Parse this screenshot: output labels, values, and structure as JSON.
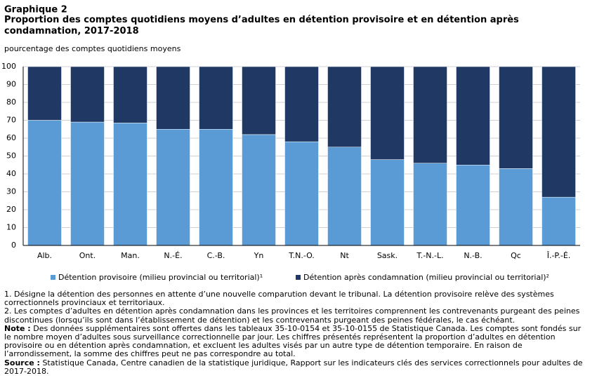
{
  "chart_data": {
    "type": "stacked-bar",
    "label": "Graphique 2",
    "title": "Proportion des comptes quotidiens moyens d’adultes en détention provisoire et en détention après condamnation, 2017-2018",
    "ylabel": "pourcentage des comptes quotidiens moyens",
    "categories": [
      "Alb.",
      "Ont.",
      "Man.",
      "N.-É.",
      "C.-B.",
      "Yn",
      "T.N.-O.",
      "Nt",
      "Sask.",
      "T.-N.-L.",
      "N.-B.",
      "Qc",
      "Î.-P.-É."
    ],
    "series": [
      {
        "name": "Détention provisoire (milieu provincial ou territorial)¹",
        "color": "#5b9bd5",
        "values": [
          70,
          69,
          68.5,
          65,
          65,
          62,
          58,
          55,
          48,
          46,
          45,
          43,
          27
        ]
      },
      {
        "name": "Détention après condamnation (milieu provincial ou territorial)²",
        "color": "#1f3864",
        "values": [
          30,
          31,
          31.5,
          35,
          35,
          38,
          42,
          45,
          52,
          54,
          55,
          57,
          73
        ]
      }
    ],
    "ylim": [
      0,
      100
    ],
    "yticks": [
      0,
      10,
      20,
      30,
      40,
      50,
      60,
      70,
      80,
      90,
      100
    ],
    "grid": true
  },
  "footnotes": {
    "notes": [
      "1. Désigne la détention des personnes en attente d’une nouvelle comparution devant le tribunal. La détention provisoire relève des systèmes correctionnels provinciaux et territoriaux.",
      "2. Les comptes d’adultes en détention après condamnation dans les provinces et les territoires comprennent les contrevenants purgeant des peines discontinues (lorsqu’ils sont dans l’établissement de détention) et les contrevenants purgeant des peines fédérales, le cas échéant."
    ],
    "note_label": "Note :",
    "note_text": "Des données supplémentaires sont offertes dans les tableaux 35-10-0154 et 35-10-0155 de Statistique Canada. Les comptes sont fondés sur le nombre moyen d’adultes sous surveillance correctionnelle par jour. Les chiffres présentés représentent la proportion d’adultes en détention provisoire ou en détention après condamnation, et excluent les adultes visés par un autre type de détention temporaire. En raison de l’arrondissement, la somme des chiffres peut ne pas correspondre au total.",
    "source_label": "Source :",
    "source_text": "Statistique Canada, Centre canadien de la statistique juridique, Rapport sur les indicateurs clés des services correctionnels pour adultes de 2017-2018."
  }
}
